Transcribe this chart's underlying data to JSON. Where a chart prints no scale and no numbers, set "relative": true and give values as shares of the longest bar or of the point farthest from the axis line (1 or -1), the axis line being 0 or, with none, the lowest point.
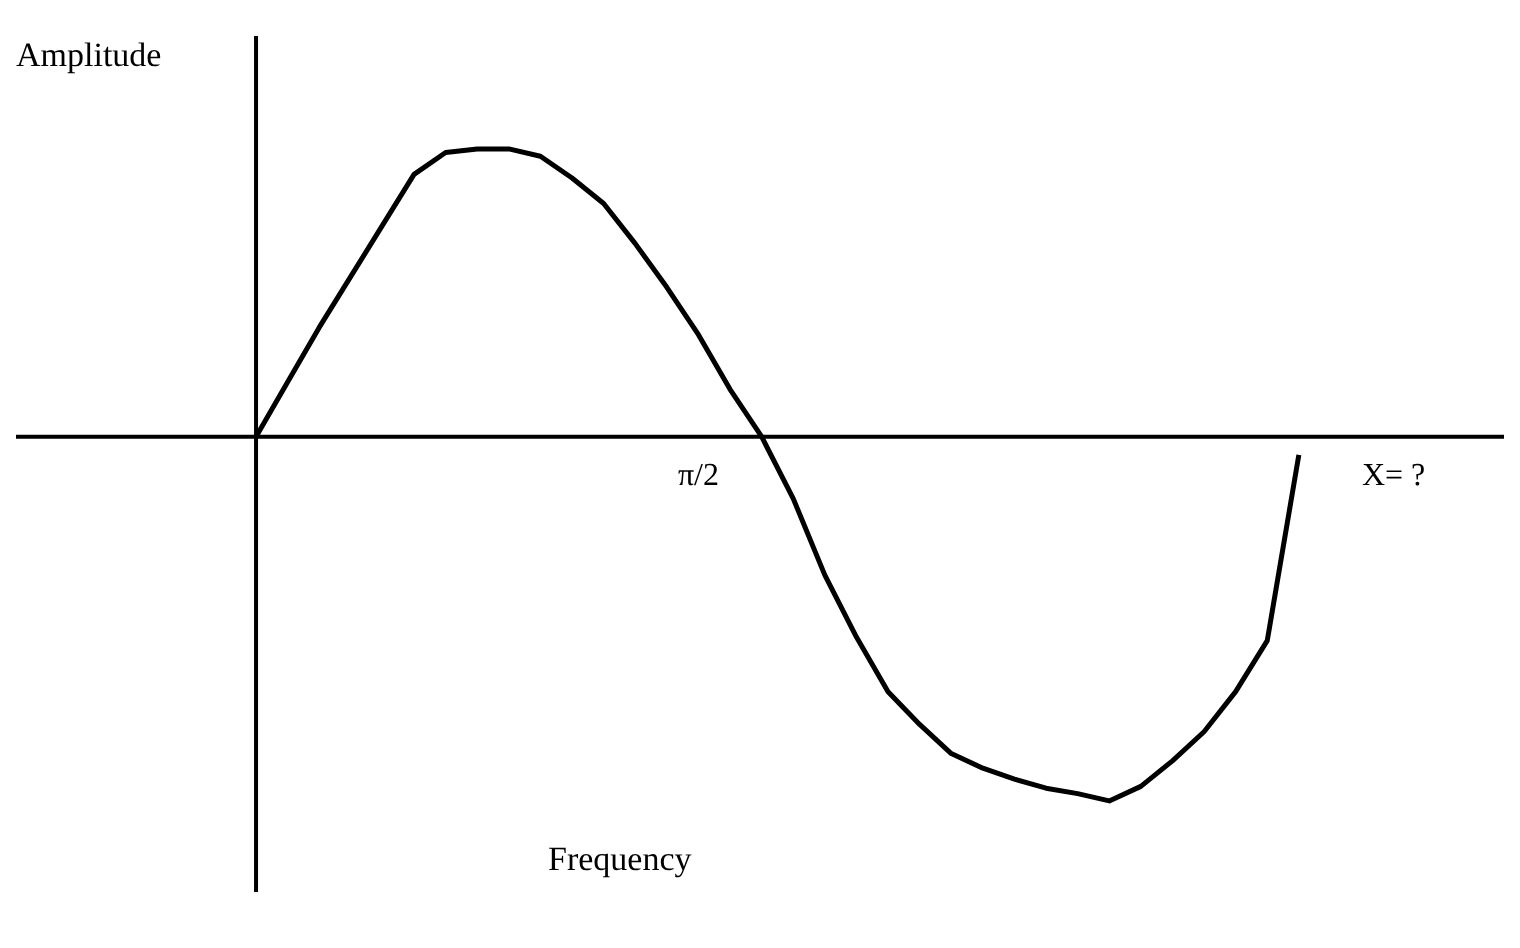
{
  "chart_data": {
    "type": "line",
    "xlabel": "Frequency",
    "ylabel": "Amplitude",
    "relative": true,
    "tick_labels": "x",
    "color": "#000000",
    "categories": [
      null,
      null,
      null,
      null,
      null,
      null,
      null,
      null,
      null,
      null,
      null,
      null,
      null,
      null,
      "π/2",
      null,
      null,
      null,
      null,
      null,
      null,
      null,
      null,
      null,
      null,
      null,
      null,
      null,
      null,
      null,
      null,
      null,
      null,
      null,
      null,
      null,
      "X= ?"
    ],
    "values": [
      0,
      0.15,
      0.3,
      0.44,
      0.58,
      0.72,
      0.78,
      0.79,
      0.79,
      0.77,
      0.71,
      0.64,
      0.53,
      0.41,
      0.28,
      0.13,
      0,
      -0.17,
      -0.38,
      -0.55,
      -0.7,
      -0.79,
      -0.87,
      -0.91,
      -0.94,
      -0.965,
      -0.98,
      -1,
      -0.96,
      -0.89,
      -0.81,
      -0.7,
      -0.56,
      -0.05,
      null,
      null,
      null
    ]
  }
}
